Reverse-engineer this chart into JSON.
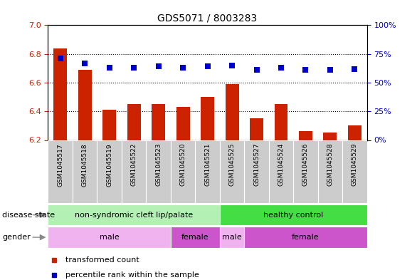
{
  "title": "GDS5071 / 8003283",
  "samples": [
    "GSM1045517",
    "GSM1045518",
    "GSM1045519",
    "GSM1045522",
    "GSM1045523",
    "GSM1045520",
    "GSM1045521",
    "GSM1045525",
    "GSM1045527",
    "GSM1045524",
    "GSM1045526",
    "GSM1045528",
    "GSM1045529"
  ],
  "bar_values": [
    6.84,
    6.69,
    6.41,
    6.45,
    6.45,
    6.43,
    6.5,
    6.59,
    6.35,
    6.45,
    6.26,
    6.25,
    6.3
  ],
  "dot_values": [
    71,
    67,
    63,
    63,
    64,
    63,
    64,
    65,
    61,
    63,
    61,
    61,
    62
  ],
  "bar_color": "#cc2200",
  "dot_color": "#0000cc",
  "ylim_left": [
    6.2,
    7.0
  ],
  "ylim_right": [
    0,
    100
  ],
  "yticks_left": [
    6.2,
    6.4,
    6.6,
    6.8,
    7.0
  ],
  "yticks_right": [
    0,
    25,
    50,
    75,
    100
  ],
  "ytick_labels_right": [
    "0%",
    "25%",
    "50%",
    "75%",
    "100%"
  ],
  "disease_state_groups": [
    {
      "label": "non-syndromic cleft lip/palate",
      "start": 0,
      "end": 7,
      "color": "#b3f0b3"
    },
    {
      "label": "healthy control",
      "start": 7,
      "end": 13,
      "color": "#44dd44"
    }
  ],
  "gender_groups": [
    {
      "label": "male",
      "start": 0,
      "end": 5,
      "color": "#f0b3f0"
    },
    {
      "label": "female",
      "start": 5,
      "end": 7,
      "color": "#cc55cc"
    },
    {
      "label": "male",
      "start": 7,
      "end": 8,
      "color": "#f0b3f0"
    },
    {
      "label": "female",
      "start": 8,
      "end": 13,
      "color": "#cc55cc"
    }
  ],
  "legend_items": [
    {
      "label": "transformed count",
      "color": "#cc2200"
    },
    {
      "label": "percentile rank within the sample",
      "color": "#0000cc"
    }
  ],
  "disease_state_label": "disease state",
  "gender_label": "gender",
  "bar_width": 0.55,
  "dot_size": 35,
  "sample_label_bg": "#cccccc",
  "grid_color": "#000000"
}
